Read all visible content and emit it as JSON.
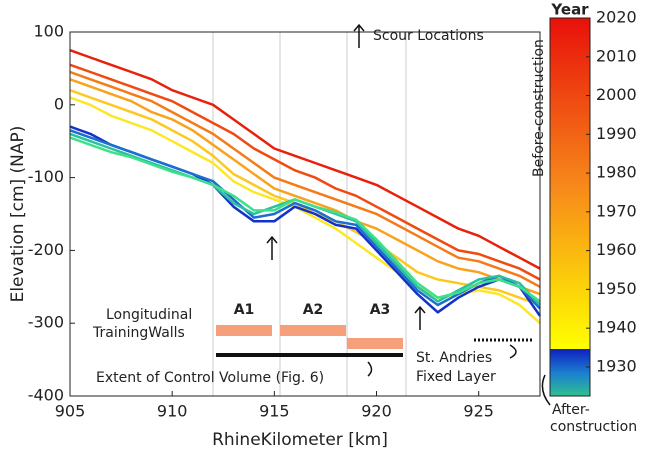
{
  "chart_data": {
    "type": "line",
    "x": [
      905,
      906,
      907,
      908,
      909,
      910,
      911,
      912,
      913,
      914,
      915,
      916,
      917,
      918,
      919,
      920,
      921,
      922,
      923,
      924,
      925,
      926,
      927,
      928
    ],
    "series": [
      {
        "color": "#e8200c",
        "values": [
          75,
          65,
          55,
          45,
          35,
          20,
          10,
          0,
          -20,
          -40,
          -60,
          -70,
          -80,
          -90,
          -100,
          -110,
          -125,
          -140,
          -155,
          -170,
          -180,
          -195,
          -210,
          -225
        ]
      },
      {
        "color": "#f04a10",
        "values": [
          55,
          45,
          35,
          25,
          15,
          5,
          -10,
          -25,
          -40,
          -60,
          -75,
          -90,
          -100,
          -115,
          -125,
          -140,
          -155,
          -170,
          -185,
          -200,
          -205,
          -215,
          -225,
          -240
        ]
      },
      {
        "color": "#f57a18",
        "values": [
          45,
          35,
          25,
          15,
          5,
          -10,
          -25,
          -40,
          -60,
          -80,
          -100,
          -110,
          -120,
          -130,
          -140,
          -150,
          -165,
          -180,
          -195,
          -210,
          -215,
          -225,
          -235,
          -250
        ]
      },
      {
        "color": "#f9a21e",
        "values": [
          35,
          25,
          15,
          5,
          -10,
          -20,
          -35,
          -55,
          -75,
          -95,
          -115,
          -125,
          -135,
          -145,
          -160,
          -170,
          -185,
          -200,
          -215,
          -225,
          -230,
          -240,
          -250,
          -260
        ]
      },
      {
        "color": "#fcc820",
        "values": [
          20,
          10,
          0,
          -10,
          -20,
          -35,
          -50,
          -70,
          -95,
          -110,
          -125,
          -135,
          -150,
          -160,
          -175,
          -190,
          -210,
          -230,
          -240,
          -245,
          -250,
          -255,
          -265,
          -275
        ]
      },
      {
        "color": "#fde725",
        "values": [
          10,
          0,
          -15,
          -25,
          -35,
          -50,
          -65,
          -80,
          -105,
          -120,
          -130,
          -140,
          -155,
          -170,
          -190,
          -210,
          -230,
          -250,
          -265,
          -260,
          -255,
          -260,
          -275,
          -300
        ]
      },
      {
        "color": "#1432c8",
        "values": [
          -30,
          -40,
          -55,
          -65,
          -75,
          -85,
          -95,
          -110,
          -140,
          -160,
          -160,
          -140,
          -150,
          -165,
          -170,
          -200,
          -230,
          -260,
          -285,
          -265,
          -250,
          -240,
          -250,
          -290
        ]
      },
      {
        "color": "#1a6fd0",
        "values": [
          -35,
          -45,
          -55,
          -65,
          -75,
          -85,
          -95,
          -105,
          -130,
          -155,
          -150,
          -135,
          -145,
          -160,
          -165,
          -195,
          -225,
          -255,
          -275,
          -260,
          -245,
          -235,
          -250,
          -280
        ]
      },
      {
        "color": "#2ac0a0",
        "values": [
          -40,
          -50,
          -60,
          -70,
          -80,
          -90,
          -100,
          -110,
          -135,
          -150,
          -140,
          -130,
          -140,
          -150,
          -160,
          -190,
          -220,
          -250,
          -270,
          -255,
          -240,
          -235,
          -245,
          -275
        ]
      },
      {
        "color": "#3ee08a",
        "values": [
          -45,
          -55,
          -65,
          -72,
          -82,
          -92,
          -100,
          -110,
          -125,
          -145,
          -145,
          -130,
          -140,
          -148,
          -158,
          -185,
          -215,
          -245,
          -265,
          -258,
          -245,
          -240,
          -250,
          -270
        ]
      }
    ],
    "xlabel": "RhineKilometer [km]",
    "ylabel": "Elevation [cm] (NAP)",
    "xlim": [
      905,
      928
    ],
    "ylim": [
      -400,
      100
    ],
    "xticks": [
      905,
      910,
      915,
      920,
      925
    ],
    "yticks": [
      100,
      0,
      -100,
      -200,
      -300,
      -400
    ],
    "colorbar": {
      "label": "Year",
      "lim": [
        1922.5,
        2020
      ],
      "ticks": [
        1930,
        1940,
        1950,
        1960,
        1970,
        1980,
        1990,
        2000,
        2010,
        2020
      ]
    },
    "annotations": {
      "scour": "Scour Locations",
      "before": "Before-construction",
      "after1": "After-",
      "after2": "construction",
      "walls1": "Longitudinal",
      "walls2": "TrainingWalls",
      "a1": "A1",
      "a2": "A2",
      "a3": "A3",
      "control": "Extent of Control Volume (Fig. 6)",
      "fixed1": "St. Andries",
      "fixed2": "Fixed Layer"
    }
  }
}
